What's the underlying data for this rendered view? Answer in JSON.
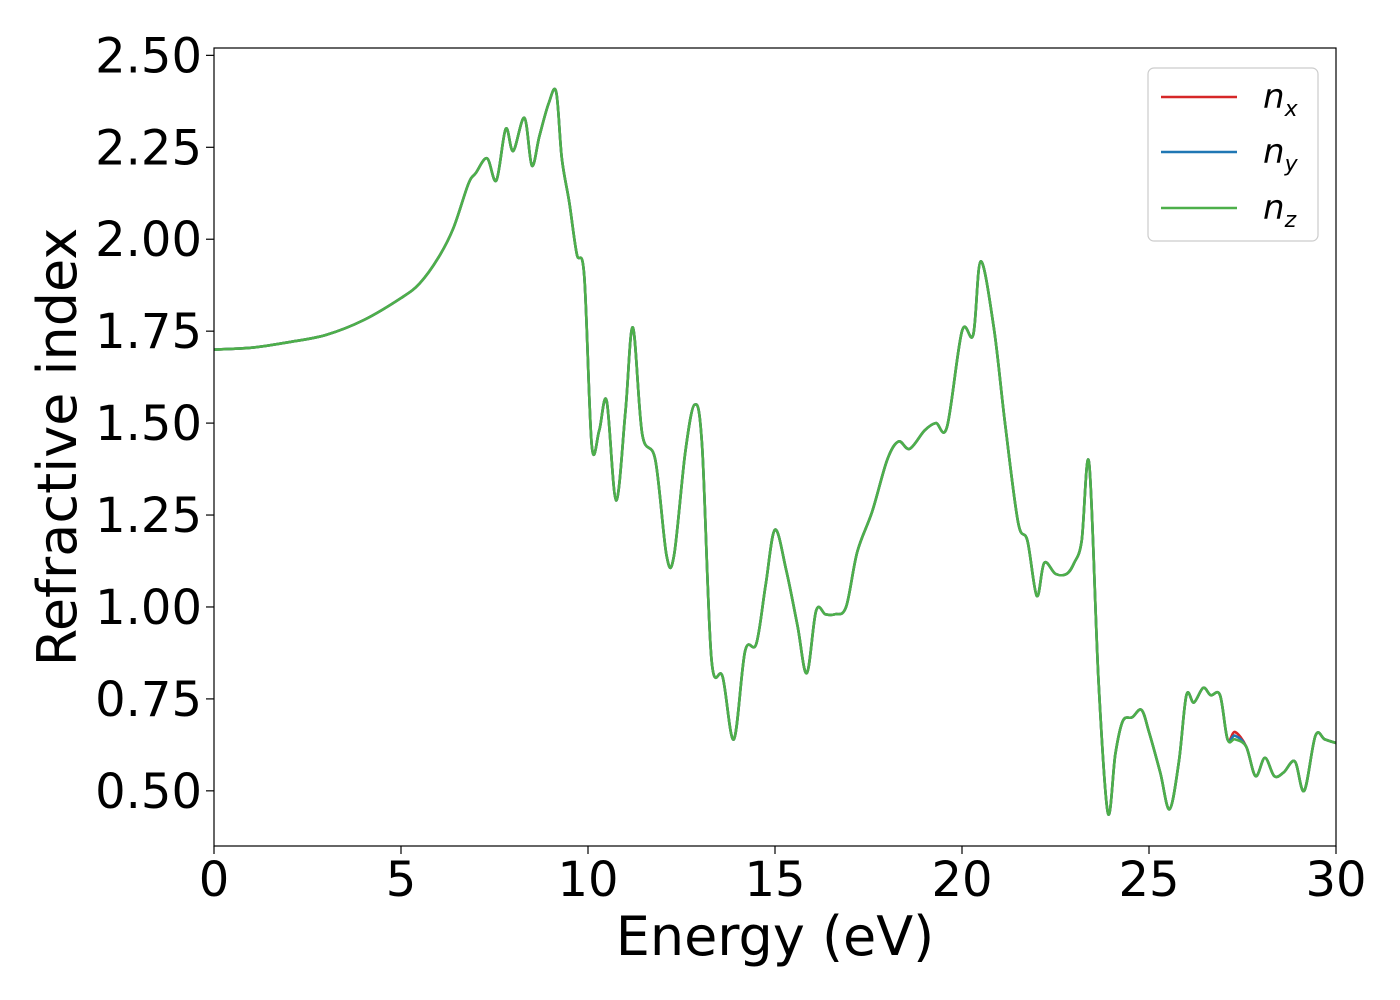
{
  "chart_data": {
    "type": "line",
    "title": "",
    "xlabel": "Energy (eV)",
    "ylabel": "Refractive index",
    "xlim": [
      0,
      30
    ],
    "ylim": [
      0.35,
      2.52
    ],
    "xticks": [
      0,
      5,
      10,
      15,
      20,
      25,
      30
    ],
    "yticks": [
      0.5,
      0.75,
      1.0,
      1.25,
      1.5,
      1.75,
      2.0,
      2.25,
      2.5
    ],
    "xtick_labels": [
      "0",
      "5",
      "10",
      "15",
      "20",
      "25",
      "30"
    ],
    "ytick_labels": [
      "0.50",
      "0.75",
      "1.00",
      "1.25",
      "1.50",
      "1.75",
      "2.00",
      "2.25",
      "2.50"
    ],
    "grid": false,
    "legend_position": "top-right",
    "series": [
      {
        "name": "n_x",
        "legend_base": "n",
        "legend_sub": "x",
        "color": "#d62728",
        "x": [
          0,
          1,
          2,
          3,
          4,
          5,
          5.5,
          6,
          6.4,
          6.8,
          7.0,
          7.3,
          7.55,
          7.8,
          8.0,
          8.3,
          8.5,
          8.7,
          8.95,
          9.15,
          9.3,
          9.5,
          9.7,
          9.9,
          10.1,
          10.3,
          10.5,
          10.75,
          11.0,
          11.2,
          11.45,
          11.8,
          12.1,
          12.3,
          12.6,
          12.85,
          13.05,
          13.3,
          13.6,
          13.9,
          14.2,
          14.5,
          14.75,
          15.0,
          15.3,
          15.6,
          15.85,
          16.1,
          16.35,
          16.6,
          16.9,
          17.2,
          17.6,
          18.0,
          18.3,
          18.6,
          19.0,
          19.3,
          19.6,
          20.0,
          20.3,
          20.5,
          20.85,
          21.15,
          21.5,
          21.75,
          22.0,
          22.2,
          22.5,
          22.8,
          23.0,
          23.2,
          23.4,
          23.65,
          23.9,
          24.1,
          24.3,
          24.55,
          24.8,
          25.0,
          25.3,
          25.55,
          25.8,
          26.0,
          26.2,
          26.45,
          26.65,
          26.9,
          27.1,
          27.3,
          27.6,
          27.85,
          28.1,
          28.35,
          28.6,
          28.9,
          29.15,
          29.45,
          29.7,
          30.0
        ],
        "values": [
          1.7,
          1.705,
          1.72,
          1.74,
          1.78,
          1.84,
          1.88,
          1.95,
          2.03,
          2.15,
          2.18,
          2.22,
          2.16,
          2.3,
          2.24,
          2.33,
          2.2,
          2.28,
          2.37,
          2.4,
          2.22,
          2.1,
          1.96,
          1.9,
          1.44,
          1.48,
          1.56,
          1.29,
          1.53,
          1.76,
          1.47,
          1.4,
          1.14,
          1.14,
          1.42,
          1.55,
          1.44,
          0.86,
          0.81,
          0.64,
          0.88,
          0.9,
          1.06,
          1.21,
          1.1,
          0.95,
          0.82,
          0.99,
          0.98,
          0.98,
          1.0,
          1.15,
          1.26,
          1.4,
          1.45,
          1.43,
          1.48,
          1.5,
          1.49,
          1.75,
          1.74,
          1.94,
          1.76,
          1.5,
          1.23,
          1.18,
          1.03,
          1.12,
          1.09,
          1.09,
          1.12,
          1.18,
          1.39,
          0.8,
          0.44,
          0.6,
          0.69,
          0.7,
          0.72,
          0.66,
          0.55,
          0.45,
          0.58,
          0.76,
          0.74,
          0.78,
          0.76,
          0.76,
          0.64,
          0.66,
          0.62,
          0.54,
          0.59,
          0.54,
          0.55,
          0.58,
          0.5,
          0.65,
          0.64,
          0.63
        ]
      },
      {
        "name": "n_y",
        "legend_base": "n",
        "legend_sub": "y",
        "color": "#1f77b4",
        "x": [
          0,
          1,
          2,
          3,
          4,
          5,
          5.5,
          6,
          6.4,
          6.8,
          7.0,
          7.3,
          7.55,
          7.8,
          8.0,
          8.3,
          8.5,
          8.7,
          8.95,
          9.15,
          9.3,
          9.5,
          9.7,
          9.9,
          10.1,
          10.3,
          10.5,
          10.75,
          11.0,
          11.2,
          11.45,
          11.8,
          12.1,
          12.3,
          12.6,
          12.85,
          13.05,
          13.3,
          13.6,
          13.9,
          14.2,
          14.5,
          14.75,
          15.0,
          15.3,
          15.6,
          15.85,
          16.1,
          16.35,
          16.6,
          16.9,
          17.2,
          17.6,
          18.0,
          18.3,
          18.6,
          19.0,
          19.3,
          19.6,
          20.0,
          20.3,
          20.5,
          20.85,
          21.15,
          21.5,
          21.75,
          22.0,
          22.2,
          22.5,
          22.8,
          23.0,
          23.2,
          23.4,
          23.65,
          23.9,
          24.1,
          24.3,
          24.55,
          24.8,
          25.0,
          25.3,
          25.55,
          25.8,
          26.0,
          26.2,
          26.45,
          26.65,
          26.9,
          27.1,
          27.3,
          27.6,
          27.85,
          28.1,
          28.35,
          28.6,
          28.9,
          29.15,
          29.45,
          29.7,
          30.0
        ],
        "values": [
          1.7,
          1.705,
          1.72,
          1.74,
          1.78,
          1.84,
          1.88,
          1.95,
          2.03,
          2.15,
          2.18,
          2.22,
          2.16,
          2.3,
          2.24,
          2.33,
          2.2,
          2.28,
          2.37,
          2.4,
          2.22,
          2.1,
          1.96,
          1.9,
          1.44,
          1.48,
          1.56,
          1.29,
          1.53,
          1.76,
          1.47,
          1.4,
          1.14,
          1.14,
          1.42,
          1.55,
          1.44,
          0.86,
          0.81,
          0.64,
          0.88,
          0.9,
          1.06,
          1.21,
          1.1,
          0.95,
          0.82,
          0.99,
          0.98,
          0.98,
          1.0,
          1.15,
          1.26,
          1.4,
          1.45,
          1.43,
          1.48,
          1.5,
          1.49,
          1.75,
          1.74,
          1.94,
          1.76,
          1.5,
          1.23,
          1.18,
          1.03,
          1.12,
          1.09,
          1.09,
          1.12,
          1.18,
          1.39,
          0.8,
          0.44,
          0.6,
          0.69,
          0.7,
          0.72,
          0.66,
          0.55,
          0.45,
          0.58,
          0.76,
          0.74,
          0.78,
          0.76,
          0.76,
          0.64,
          0.65,
          0.62,
          0.54,
          0.59,
          0.54,
          0.55,
          0.58,
          0.5,
          0.65,
          0.64,
          0.63
        ]
      },
      {
        "name": "n_z",
        "legend_base": "n",
        "legend_sub": "z",
        "color": "#4daf4a",
        "x": [
          0,
          1,
          2,
          3,
          4,
          5,
          5.5,
          6,
          6.4,
          6.8,
          7.0,
          7.3,
          7.55,
          7.8,
          8.0,
          8.3,
          8.5,
          8.7,
          8.95,
          9.15,
          9.3,
          9.5,
          9.7,
          9.9,
          10.1,
          10.3,
          10.5,
          10.75,
          11.0,
          11.2,
          11.45,
          11.8,
          12.1,
          12.3,
          12.6,
          12.85,
          13.05,
          13.3,
          13.6,
          13.9,
          14.2,
          14.5,
          14.75,
          15.0,
          15.3,
          15.6,
          15.85,
          16.1,
          16.35,
          16.6,
          16.9,
          17.2,
          17.6,
          18.0,
          18.3,
          18.6,
          19.0,
          19.3,
          19.6,
          20.0,
          20.3,
          20.5,
          20.85,
          21.15,
          21.5,
          21.75,
          22.0,
          22.2,
          22.5,
          22.8,
          23.0,
          23.2,
          23.4,
          23.65,
          23.9,
          24.1,
          24.3,
          24.55,
          24.8,
          25.0,
          25.3,
          25.55,
          25.8,
          26.0,
          26.2,
          26.45,
          26.65,
          26.9,
          27.1,
          27.3,
          27.6,
          27.85,
          28.1,
          28.35,
          28.6,
          28.9,
          29.15,
          29.45,
          29.7,
          30.0
        ],
        "values": [
          1.7,
          1.705,
          1.72,
          1.74,
          1.78,
          1.84,
          1.88,
          1.95,
          2.03,
          2.15,
          2.18,
          2.22,
          2.16,
          2.3,
          2.24,
          2.33,
          2.2,
          2.28,
          2.37,
          2.4,
          2.22,
          2.1,
          1.96,
          1.9,
          1.44,
          1.48,
          1.56,
          1.29,
          1.53,
          1.76,
          1.47,
          1.4,
          1.14,
          1.14,
          1.42,
          1.55,
          1.44,
          0.86,
          0.81,
          0.64,
          0.88,
          0.9,
          1.06,
          1.21,
          1.1,
          0.95,
          0.82,
          0.99,
          0.98,
          0.98,
          1.0,
          1.15,
          1.26,
          1.4,
          1.45,
          1.43,
          1.48,
          1.5,
          1.49,
          1.75,
          1.74,
          1.94,
          1.76,
          1.5,
          1.23,
          1.18,
          1.03,
          1.12,
          1.09,
          1.09,
          1.12,
          1.18,
          1.39,
          0.8,
          0.44,
          0.6,
          0.69,
          0.7,
          0.72,
          0.66,
          0.55,
          0.45,
          0.58,
          0.76,
          0.74,
          0.78,
          0.76,
          0.76,
          0.64,
          0.64,
          0.62,
          0.54,
          0.59,
          0.54,
          0.55,
          0.58,
          0.5,
          0.65,
          0.64,
          0.63
        ]
      }
    ]
  }
}
